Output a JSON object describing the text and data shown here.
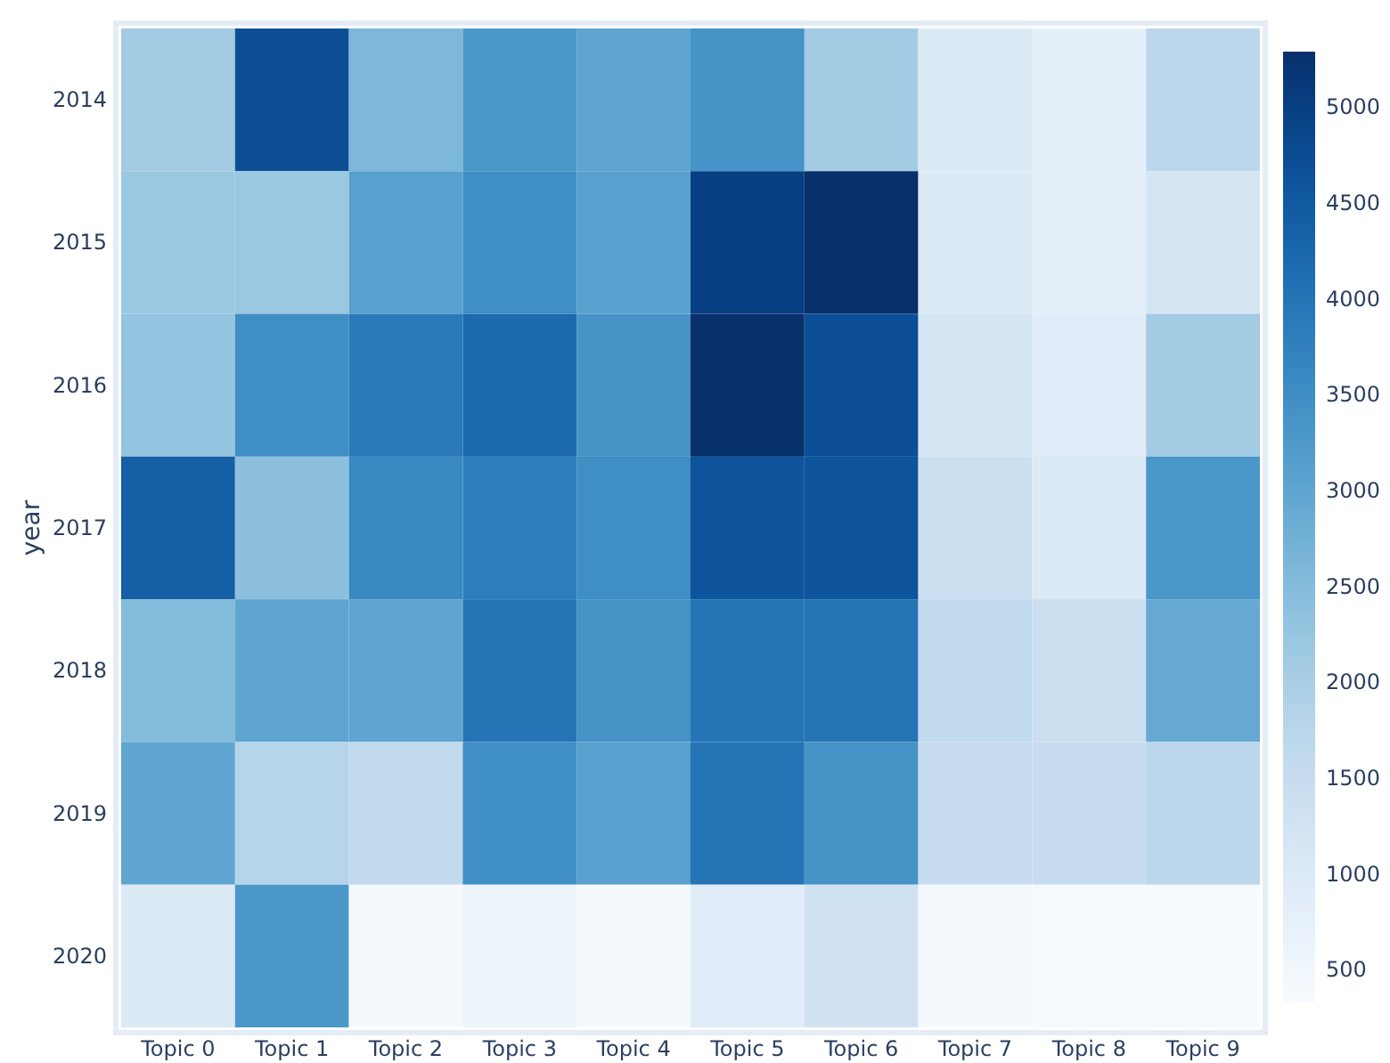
{
  "chart_data": {
    "type": "heatmap",
    "ylabel": "year",
    "categories": [
      "Topic 0",
      "Topic 1",
      "Topic 2",
      "Topic 3",
      "Topic 4",
      "Topic 5",
      "Topic 6",
      "Topic 7",
      "Topic 8",
      "Topic 9"
    ],
    "y_categories": [
      "2014",
      "2015",
      "2016",
      "2017",
      "2018",
      "2019",
      "2020"
    ],
    "cells": [
      [
        2100,
        4700,
        2600,
        3300,
        3000,
        3400,
        2100,
        1000,
        800,
        1700
      ],
      [
        2200,
        2200,
        3100,
        3500,
        3100,
        5000,
        5290,
        1000,
        850,
        1200
      ],
      [
        2300,
        3500,
        3900,
        4200,
        3400,
        5290,
        4700,
        1200,
        900,
        2100
      ],
      [
        4400,
        2400,
        3600,
        3800,
        3500,
        4600,
        4600,
        1400,
        1000,
        3300
      ],
      [
        2500,
        3000,
        3000,
        4000,
        3400,
        4000,
        4000,
        1600,
        1400,
        2900
      ],
      [
        3000,
        1800,
        1600,
        3500,
        3100,
        4000,
        3400,
        1500,
        1500,
        1700
      ],
      [
        1000,
        3300,
        400,
        600,
        400,
        900,
        1300,
        400,
        350,
        350
      ]
    ],
    "clim": [
      330,
      5290
    ],
    "cticks": [
      500,
      1000,
      1500,
      2000,
      2500,
      3000,
      3500,
      4000,
      4500,
      5000
    ]
  }
}
